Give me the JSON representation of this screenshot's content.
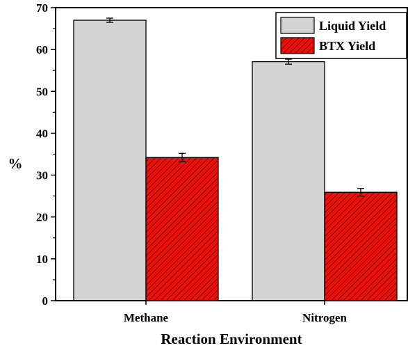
{
  "chart_data": {
    "type": "bar",
    "categories": [
      "Methane",
      "Nitrogen"
    ],
    "series": [
      {
        "name": "Liquid Yield",
        "values": [
          67.0,
          57.1
        ],
        "errors": [
          0.5,
          0.6
        ],
        "color": "#d3d3d3",
        "pattern": "none"
      },
      {
        "name": "BTX Yield",
        "values": [
          34.2,
          25.9
        ],
        "errors": [
          1.0,
          0.9
        ],
        "color": "#e8120c",
        "pattern": "diagonal-hatch"
      }
    ],
    "title": "",
    "xlabel": "Reaction Environment",
    "ylabel": "%",
    "ylim": [
      0,
      70
    ],
    "yticks": [
      0,
      10,
      20,
      30,
      40,
      50,
      60,
      70
    ],
    "grid": false,
    "legend_position": "top-right",
    "error_bars": true
  }
}
